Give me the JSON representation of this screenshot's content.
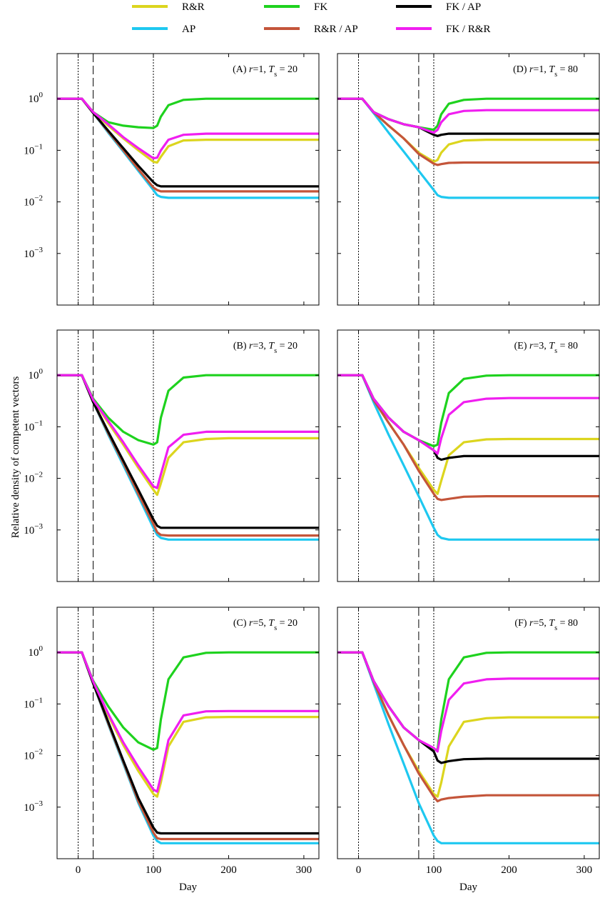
{
  "chart_data": {
    "type": "line",
    "log_y": true,
    "ylabel": "Relative density of competent vectors",
    "xlabel": "Day",
    "series": [
      {
        "name": "R&R",
        "color": "#dcd51e"
      },
      {
        "name": "AP",
        "color": "#1ec8f0"
      },
      {
        "name": "FK",
        "color": "#1ed21e"
      },
      {
        "name": "R&R / AP",
        "color": "#c4553a"
      },
      {
        "name": "FK / AP",
        "color": "#000000"
      },
      {
        "name": "FK / R&R",
        "color": "#f01ef0"
      }
    ],
    "x": [
      -28,
      0,
      5,
      20,
      40,
      60,
      80,
      100,
      105,
      110,
      120,
      140,
      170,
      200,
      250,
      320
    ],
    "xlim": [
      -28,
      320
    ],
    "xticks": [
      0,
      100,
      200,
      300
    ],
    "ylim": [
      0.0001,
      7.5
    ],
    "yticks": [
      {
        "value": 1,
        "label": "10",
        "exponent": "0"
      },
      {
        "value": 0.1,
        "label": "10",
        "exponent": "−1"
      },
      {
        "value": 0.01,
        "label": "10",
        "exponent": "−2"
      },
      {
        "value": 0.001,
        "label": "10",
        "exponent": "−3"
      }
    ],
    "reference_days": [
      0,
      100
    ],
    "panels": [
      {
        "title": [
          "(A) ",
          "r",
          "=1,  ",
          "T",
          "s",
          " = 20"
        ],
        "switch_day": 20,
        "values": [
          [
            1,
            1,
            1,
            0.55,
            0.3,
            0.17,
            0.1,
            0.06,
            0.058,
            0.075,
            0.12,
            0.155,
            0.16,
            0.16,
            0.16,
            0.16
          ],
          [
            1,
            1,
            1,
            0.53,
            0.22,
            0.095,
            0.04,
            0.017,
            0.0135,
            0.0125,
            0.012,
            0.012,
            0.012,
            0.012,
            0.012,
            0.012
          ],
          [
            1,
            1,
            1,
            0.55,
            0.35,
            0.3,
            0.28,
            0.27,
            0.3,
            0.45,
            0.75,
            0.95,
            1,
            1,
            1,
            1
          ],
          [
            1,
            1,
            1,
            0.53,
            0.23,
            0.1,
            0.043,
            0.019,
            0.017,
            0.016,
            0.016,
            0.016,
            0.016,
            0.016,
            0.016,
            0.016
          ],
          [
            1,
            1,
            1,
            0.53,
            0.24,
            0.11,
            0.05,
            0.024,
            0.021,
            0.02,
            0.02,
            0.02,
            0.02,
            0.02,
            0.02,
            0.02
          ],
          [
            1,
            1,
            1,
            0.55,
            0.32,
            0.18,
            0.11,
            0.07,
            0.072,
            0.1,
            0.16,
            0.2,
            0.21,
            0.21,
            0.21,
            0.21
          ]
        ]
      },
      {
        "title": [
          "(B) ",
          "r",
          "=3,  ",
          "T",
          "s",
          " = 20"
        ],
        "switch_day": 20,
        "values": [
          [
            1,
            1,
            1,
            0.33,
            0.12,
            0.045,
            0.016,
            0.006,
            0.0048,
            0.008,
            0.025,
            0.05,
            0.058,
            0.06,
            0.06,
            0.06
          ],
          [
            1,
            1,
            1,
            0.3,
            0.07,
            0.018,
            0.0045,
            0.0011,
            0.0008,
            0.0007,
            0.00065,
            0.00065,
            0.00065,
            0.00065,
            0.00065,
            0.00065
          ],
          [
            1,
            1,
            1,
            0.35,
            0.15,
            0.08,
            0.055,
            0.045,
            0.05,
            0.15,
            0.5,
            0.9,
            1,
            1,
            1,
            1
          ],
          [
            1,
            1,
            1,
            0.3,
            0.075,
            0.02,
            0.005,
            0.0013,
            0.0009,
            0.0008,
            0.00078,
            0.00078,
            0.00078,
            0.00078,
            0.00078,
            0.00078
          ],
          [
            1,
            1,
            1,
            0.3,
            0.08,
            0.022,
            0.006,
            0.0016,
            0.0012,
            0.0011,
            0.0011,
            0.0011,
            0.0011,
            0.0011,
            0.0011,
            0.0011
          ],
          [
            1,
            1,
            1,
            0.33,
            0.13,
            0.05,
            0.018,
            0.007,
            0.0065,
            0.012,
            0.04,
            0.07,
            0.08,
            0.08,
            0.08,
            0.08
          ]
        ]
      },
      {
        "title": [
          "(C) ",
          "r",
          "=5,  ",
          "T",
          "s",
          " = 20"
        ],
        "switch_day": 20,
        "values": [
          [
            1,
            1,
            1,
            0.27,
            0.06,
            0.016,
            0.005,
            0.0018,
            0.0016,
            0.003,
            0.015,
            0.045,
            0.055,
            0.056,
            0.056,
            0.056
          ],
          [
            1,
            1,
            1,
            0.25,
            0.04,
            0.007,
            0.0012,
            0.00028,
            0.00022,
            0.0002,
            0.0002,
            0.0002,
            0.0002,
            0.0002,
            0.0002,
            0.0002
          ],
          [
            1,
            1,
            1,
            0.28,
            0.09,
            0.035,
            0.018,
            0.013,
            0.014,
            0.05,
            0.3,
            0.8,
            0.98,
            1,
            1,
            1
          ],
          [
            1,
            1,
            1,
            0.25,
            0.042,
            0.0075,
            0.0013,
            0.00032,
            0.00025,
            0.00024,
            0.00024,
            0.00024,
            0.00024,
            0.00024,
            0.00024,
            0.00024
          ],
          [
            1,
            1,
            1,
            0.25,
            0.045,
            0.008,
            0.0015,
            0.0004,
            0.00032,
            0.00031,
            0.00031,
            0.00031,
            0.00031,
            0.00031,
            0.00031,
            0.00031
          ],
          [
            1,
            1,
            1,
            0.27,
            0.065,
            0.018,
            0.006,
            0.0022,
            0.002,
            0.004,
            0.02,
            0.06,
            0.072,
            0.073,
            0.073,
            0.073
          ]
        ]
      },
      {
        "title": [
          "(D) ",
          "r",
          "=1,  ",
          "T",
          "s",
          " = 80"
        ],
        "switch_day": 80,
        "values": [
          [
            1,
            1,
            1,
            0.55,
            0.3,
            0.17,
            0.09,
            0.06,
            0.065,
            0.09,
            0.13,
            0.155,
            0.16,
            0.16,
            0.16,
            0.16
          ],
          [
            1,
            1,
            1,
            0.53,
            0.22,
            0.095,
            0.04,
            0.017,
            0.0135,
            0.0125,
            0.012,
            0.012,
            0.012,
            0.012,
            0.012,
            0.012
          ],
          [
            1,
            1,
            1,
            0.55,
            0.4,
            0.32,
            0.28,
            0.25,
            0.3,
            0.5,
            0.8,
            0.95,
            1,
            1,
            1,
            1
          ],
          [
            1,
            1,
            1,
            0.55,
            0.3,
            0.17,
            0.085,
            0.055,
            0.052,
            0.054,
            0.057,
            0.058,
            0.058,
            0.058,
            0.058,
            0.058
          ],
          [
            1,
            1,
            1,
            0.55,
            0.4,
            0.32,
            0.28,
            0.2,
            0.19,
            0.2,
            0.21,
            0.21,
            0.21,
            0.21,
            0.21,
            0.21
          ],
          [
            1,
            1,
            1,
            0.55,
            0.4,
            0.32,
            0.28,
            0.22,
            0.25,
            0.35,
            0.5,
            0.58,
            0.6,
            0.6,
            0.6,
            0.6
          ]
        ]
      },
      {
        "title": [
          "(E) ",
          "r",
          "=3,  ",
          "T",
          "s",
          " = 80"
        ],
        "switch_day": 80,
        "values": [
          [
            1,
            1,
            1,
            0.33,
            0.12,
            0.045,
            0.016,
            0.006,
            0.005,
            0.009,
            0.028,
            0.05,
            0.057,
            0.058,
            0.058,
            0.058
          ],
          [
            1,
            1,
            1,
            0.3,
            0.07,
            0.018,
            0.0045,
            0.0011,
            0.0008,
            0.0007,
            0.00065,
            0.00065,
            0.00065,
            0.00065,
            0.00065,
            0.00065
          ],
          [
            1,
            1,
            1,
            0.35,
            0.15,
            0.08,
            0.055,
            0.042,
            0.045,
            0.12,
            0.45,
            0.85,
            0.98,
            1,
            1,
            1
          ],
          [
            1,
            1,
            1,
            0.33,
            0.12,
            0.045,
            0.014,
            0.005,
            0.004,
            0.0038,
            0.004,
            0.0044,
            0.0045,
            0.0045,
            0.0045,
            0.0045
          ],
          [
            1,
            1,
            1,
            0.35,
            0.15,
            0.08,
            0.055,
            0.035,
            0.025,
            0.023,
            0.025,
            0.027,
            0.027,
            0.027,
            0.027,
            0.027
          ],
          [
            1,
            1,
            1,
            0.35,
            0.15,
            0.08,
            0.055,
            0.035,
            0.03,
            0.06,
            0.17,
            0.3,
            0.35,
            0.36,
            0.36,
            0.36
          ]
        ]
      },
      {
        "title": [
          "(F) ",
          "r",
          "=5,  ",
          "T",
          "s",
          " = 80"
        ],
        "switch_day": 80,
        "values": [
          [
            1,
            1,
            1,
            0.27,
            0.06,
            0.016,
            0.005,
            0.0018,
            0.0016,
            0.003,
            0.015,
            0.045,
            0.053,
            0.055,
            0.055,
            0.055
          ],
          [
            1,
            1,
            1,
            0.25,
            0.04,
            0.007,
            0.0012,
            0.00028,
            0.00022,
            0.0002,
            0.0002,
            0.0002,
            0.0002,
            0.0002,
            0.0002,
            0.0002
          ],
          [
            1,
            1,
            1,
            0.28,
            0.09,
            0.035,
            0.02,
            0.013,
            0.013,
            0.05,
            0.3,
            0.8,
            0.98,
            1,
            1,
            1
          ],
          [
            1,
            1,
            1,
            0.27,
            0.06,
            0.016,
            0.0045,
            0.0016,
            0.0013,
            0.0014,
            0.0015,
            0.0016,
            0.0017,
            0.0017,
            0.0017,
            0.0017
          ],
          [
            1,
            1,
            1,
            0.28,
            0.09,
            0.035,
            0.02,
            0.012,
            0.008,
            0.0072,
            0.0078,
            0.0085,
            0.0087,
            0.0087,
            0.0087,
            0.0087
          ],
          [
            1,
            1,
            1,
            0.28,
            0.09,
            0.035,
            0.02,
            0.014,
            0.012,
            0.03,
            0.12,
            0.25,
            0.3,
            0.31,
            0.31,
            0.31
          ]
        ]
      }
    ]
  }
}
